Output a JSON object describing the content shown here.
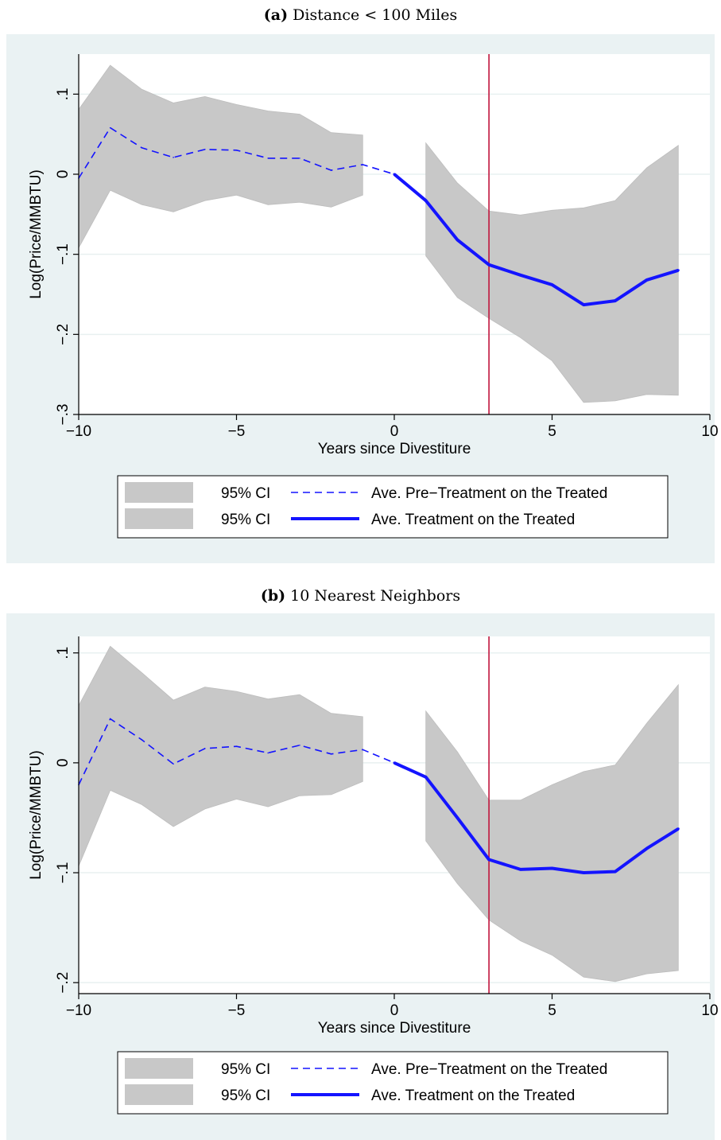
{
  "panels": [
    {
      "caption_letter": "(a)",
      "caption_text": "Distance < 100 Miles",
      "chart_data": {
        "type": "line",
        "xlabel": "Years since Divestiture",
        "ylabel": "Log(Price/MMBTU)",
        "xlim": [
          -10,
          10
        ],
        "ylim": [
          -0.3,
          0.15
        ],
        "x_ticks": [
          -10,
          -5,
          0,
          5,
          10
        ],
        "x_tick_labels": [
          "−10",
          "−5",
          "0",
          "5",
          "10"
        ],
        "y_ticks": [
          -0.3,
          -0.2,
          -0.1,
          0,
          0.1
        ],
        "y_tick_labels": [
          "−.3",
          "−.2",
          "−.1",
          "0",
          ".1"
        ],
        "vline_x": 3,
        "grid": true,
        "legend_position": "bottom",
        "pre": {
          "name": "Ave. Pre−Treatment on the Treated",
          "ci_name": "95% CI",
          "x": [
            -10,
            -9,
            -8,
            -7,
            -6,
            -5,
            -4,
            -3,
            -2,
            -1,
            0
          ],
          "y": [
            -0.005,
            0.058,
            0.033,
            0.021,
            0.031,
            0.03,
            0.02,
            0.02,
            0.005,
            0.012,
            0.0
          ],
          "lower": [
            -0.092,
            -0.02,
            -0.038,
            -0.047,
            -0.033,
            -0.026,
            -0.038,
            -0.035,
            -0.041,
            -0.026,
            null
          ],
          "upper": [
            0.081,
            0.136,
            0.106,
            0.089,
            0.097,
            0.087,
            0.079,
            0.075,
            0.052,
            0.049,
            null
          ]
        },
        "post": {
          "name": "Ave. Treatment on the Treated",
          "ci_name": "95% CI",
          "x": [
            0,
            1,
            2,
            3,
            4,
            5,
            6,
            7,
            8,
            9
          ],
          "y": [
            0.0,
            -0.033,
            -0.082,
            -0.113,
            -0.126,
            -0.138,
            -0.163,
            -0.158,
            -0.132,
            -0.12
          ],
          "lower": [
            null,
            -0.102,
            -0.154,
            -0.18,
            -0.204,
            -0.233,
            -0.285,
            -0.283,
            -0.275,
            -0.276
          ],
          "upper": [
            null,
            0.039,
            -0.011,
            -0.046,
            -0.051,
            -0.045,
            -0.042,
            -0.033,
            0.008,
            0.036
          ]
        }
      }
    },
    {
      "caption_letter": "(b)",
      "caption_text": "10 Nearest Neighbors",
      "chart_data": {
        "type": "line",
        "xlabel": "Years since Divestiture",
        "ylabel": "Log(Price/MMBTU)",
        "xlim": [
          -10,
          10
        ],
        "ylim": [
          -0.21,
          0.115
        ],
        "x_ticks": [
          -10,
          -5,
          0,
          5,
          10
        ],
        "x_tick_labels": [
          "−10",
          "−5",
          "0",
          "5",
          "10"
        ],
        "y_ticks": [
          -0.2,
          -0.1,
          0,
          0.1
        ],
        "y_tick_labels": [
          "−.2",
          "−.1",
          "0",
          ".1"
        ],
        "vline_x": 3,
        "grid": true,
        "legend_position": "bottom",
        "pre": {
          "name": "Ave. Pre−Treatment on the Treated",
          "ci_name": "95% CI",
          "x": [
            -10,
            -9,
            -8,
            -7,
            -6,
            -5,
            -4,
            -3,
            -2,
            -1,
            0
          ],
          "y": [
            -0.02,
            0.04,
            0.021,
            -0.001,
            0.013,
            0.015,
            0.009,
            0.016,
            0.008,
            0.012,
            0.0
          ],
          "lower": [
            -0.094,
            -0.025,
            -0.038,
            -0.058,
            -0.042,
            -0.033,
            -0.04,
            -0.03,
            -0.029,
            -0.017,
            null
          ],
          "upper": [
            0.052,
            0.106,
            0.082,
            0.057,
            0.069,
            0.065,
            0.058,
            0.062,
            0.045,
            0.042,
            null
          ]
        },
        "post": {
          "name": "Ave. Treatment on the Treated",
          "ci_name": "95% CI",
          "x": [
            0,
            1,
            2,
            3,
            4,
            5,
            6,
            7,
            8,
            9
          ],
          "y": [
            0.0,
            -0.013,
            -0.05,
            -0.088,
            -0.097,
            -0.096,
            -0.1,
            -0.099,
            -0.078,
            -0.06
          ],
          "lower": [
            null,
            -0.071,
            -0.11,
            -0.143,
            -0.162,
            -0.175,
            -0.195,
            -0.199,
            -0.192,
            -0.189
          ],
          "upper": [
            null,
            0.047,
            0.01,
            -0.034,
            -0.034,
            -0.02,
            -0.008,
            -0.002,
            0.036,
            0.071
          ]
        }
      }
    }
  ]
}
